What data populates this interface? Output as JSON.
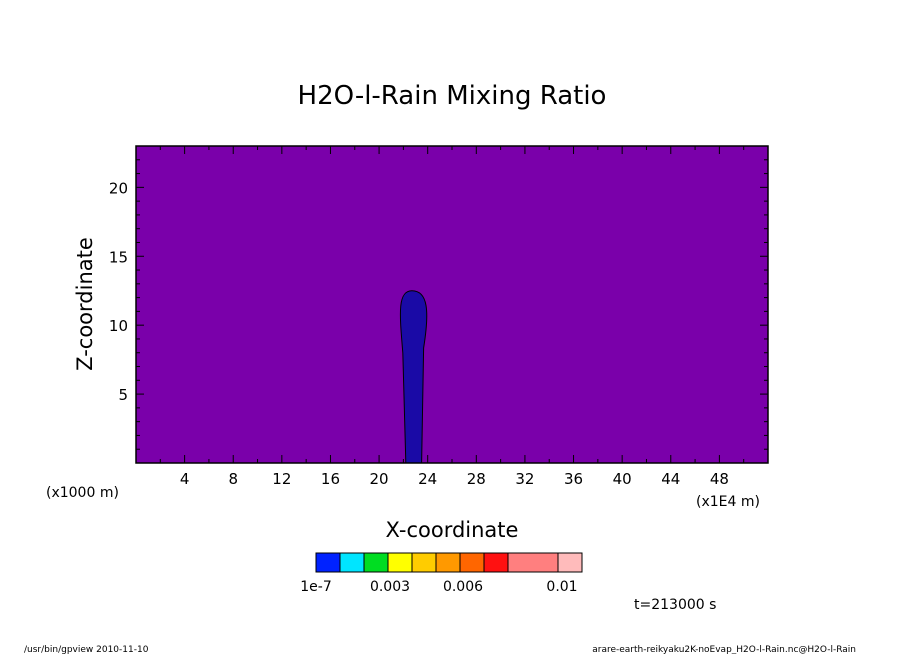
{
  "chart_data": {
    "type": "heatmap",
    "title": "H2O-l-Rain Mixing Ratio",
    "xlabel": "X-coordinate",
    "ylabel": "Z-coordinate",
    "x_unit": "(x1E4 m)",
    "y_unit": "(x1000 m)",
    "xlim": [
      0,
      52
    ],
    "ylim": [
      0,
      23
    ],
    "xticks": [
      4,
      8,
      12,
      16,
      20,
      24,
      28,
      32,
      36,
      40,
      44,
      48
    ],
    "yticks": [
      5,
      10,
      15,
      20
    ],
    "background_level": "below 1e-7",
    "plume": {
      "level": "1e-7 to 0.001",
      "center_x": 22.7,
      "base_width": [
        22.2,
        23.5
      ],
      "top_z": 12.5
    },
    "colorbar": {
      "colors": [
        "#0022ff",
        "#00e5ff",
        "#00dd22",
        "#ffff00",
        "#ffcc00",
        "#ff9900",
        "#ff6600",
        "#ff1111",
        "#ff7f7f",
        "#ffbbbb"
      ],
      "labels": [
        "1e-7",
        "0.003",
        "0.006",
        "0.01"
      ]
    },
    "colors": {
      "background_fill": "#7a00aa",
      "plume_fill": "#1a0aa6"
    }
  },
  "time_label": "t=213000 s",
  "footer": {
    "left": "/usr/bin/gpview  2010-11-10",
    "right": "arare-earth-reikyaku2K-noEvap_H2O-l-Rain.nc@H2O-l-Rain"
  }
}
